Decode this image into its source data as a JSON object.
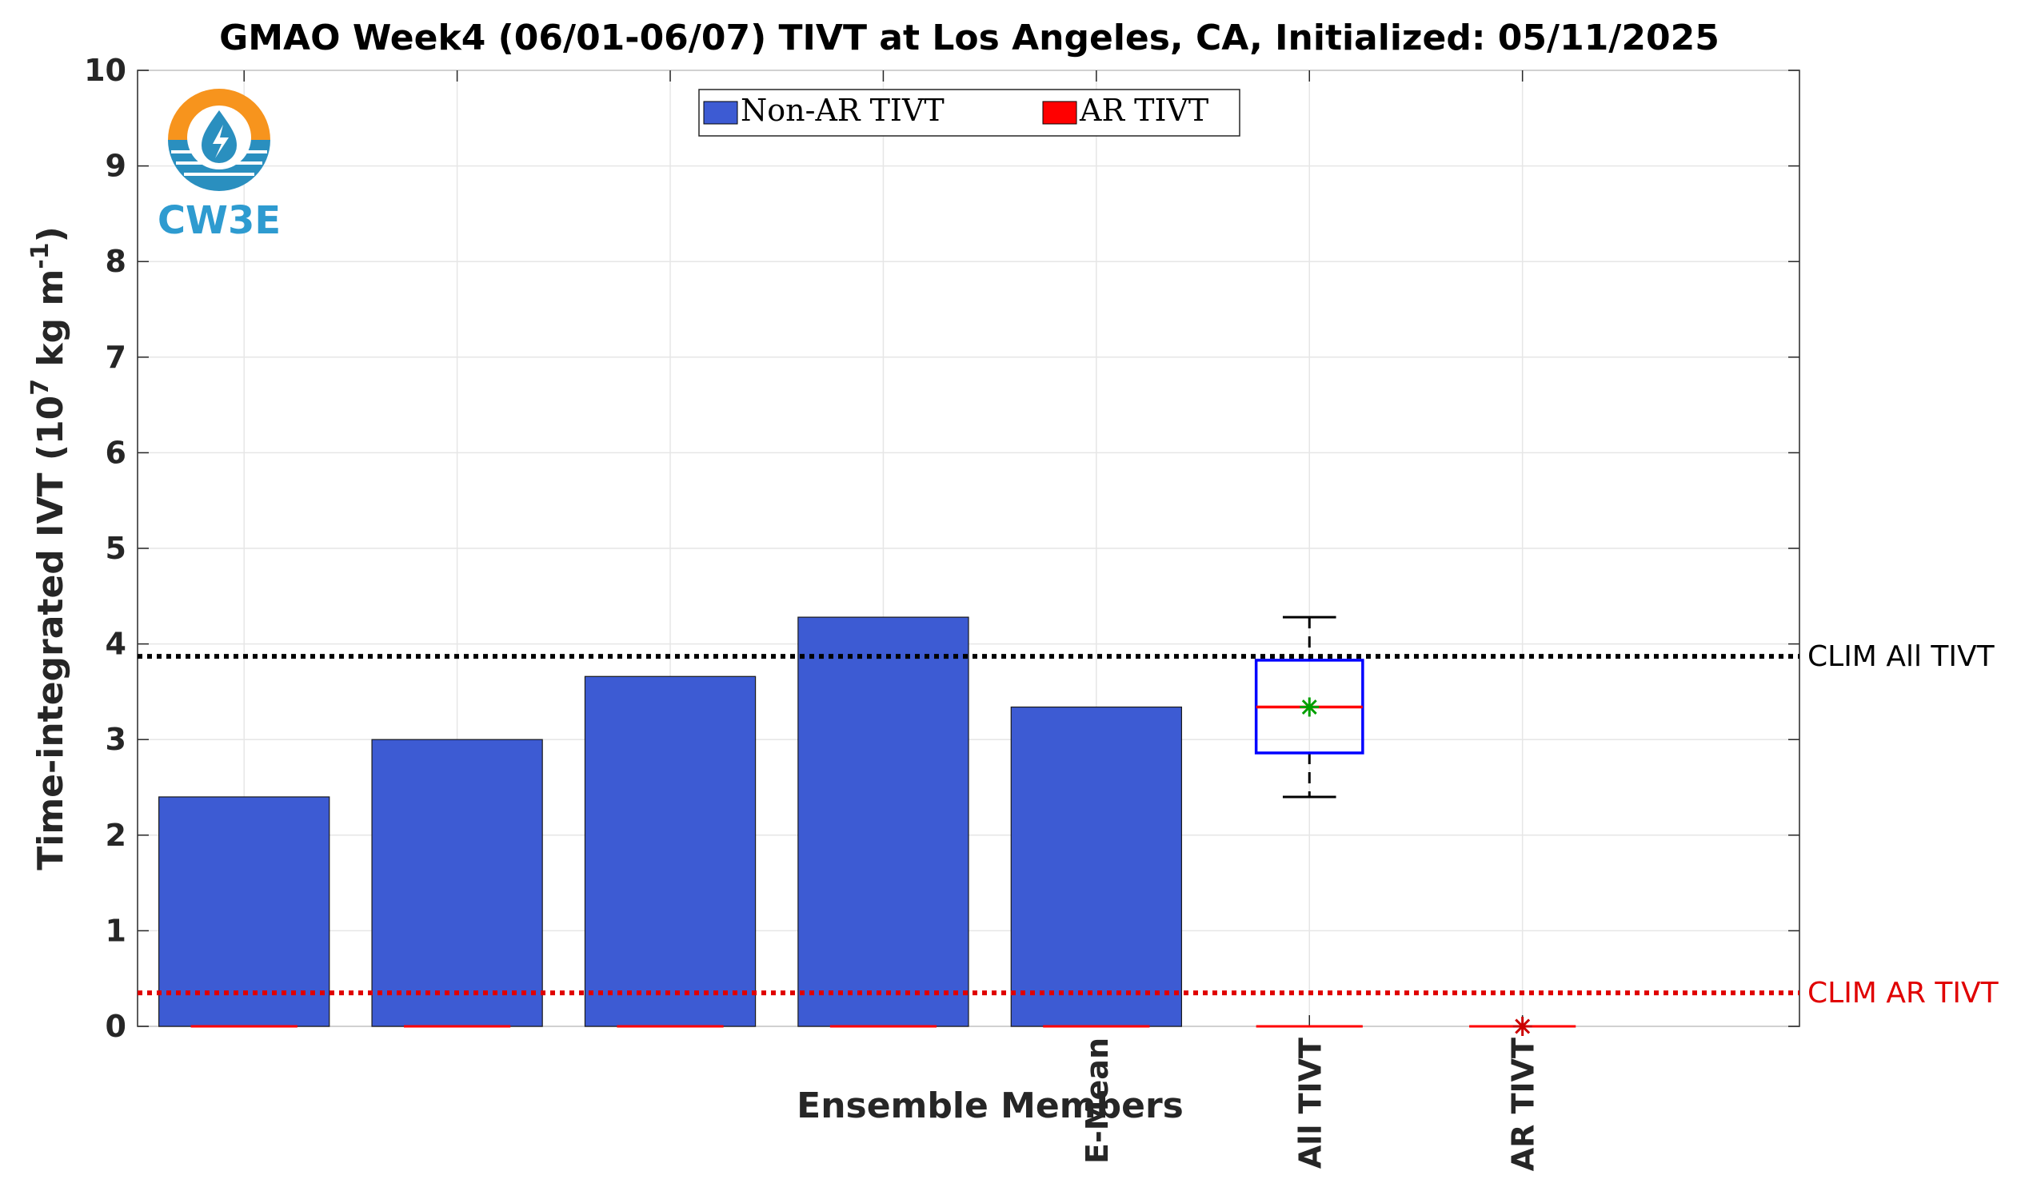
{
  "chart_data": {
    "type": "bar",
    "title": "GMAO Week4 (06/01-06/07) TIVT at Los Angeles, CA, Initialized: 05/11/2025",
    "xlabel": "Ensemble Members",
    "ylabel": "Time-integrated IVT (10^7 kg m^-1)",
    "ylim": [
      0,
      10
    ],
    "yticks": [
      "0",
      "1",
      "2",
      "3",
      "4",
      "5",
      "6",
      "7",
      "8",
      "9",
      "10"
    ],
    "grid": true,
    "legend_position": "top-center",
    "categories": [
      "",
      "",
      "",
      "",
      "E-Mean",
      "All TIVT",
      "AR TIVT"
    ],
    "series": [
      {
        "name": "Non-AR TIVT",
        "color": "#3d5bd3",
        "values": [
          2.4,
          3.0,
          3.66,
          4.28,
          3.34,
          null,
          null
        ]
      },
      {
        "name": "AR TIVT",
        "color": "#ff0000",
        "values": [
          0,
          0,
          0,
          0,
          0,
          0,
          0
        ]
      }
    ],
    "boxplot_all_tivt": {
      "min": 2.4,
      "q1": 2.86,
      "median": 3.34,
      "q3": 3.83,
      "max": 4.28,
      "mean": 3.34,
      "box_color": "#0000ff",
      "median_color": "#ff0000",
      "mean_color": "#00a000"
    },
    "ar_tivt_marker": {
      "value": 0,
      "color": "#cc0000"
    },
    "reference_lines": [
      {
        "label": "CLIM All TIVT",
        "value": 3.87,
        "color": "#000000"
      },
      {
        "label": "CLIM AR TIVT",
        "value": 0.35,
        "color": "#e00000"
      }
    ]
  },
  "logo": {
    "text": "CW3E",
    "colors": {
      "sun": "#f7941d",
      "water": "#2a8fbf",
      "text": "#2e9bd0"
    }
  },
  "ylabel_parts": {
    "main": "Time-integrated IVT (10",
    "exp1": "7",
    "mid": " kg m",
    "exp2": "-1",
    "end": ")"
  }
}
